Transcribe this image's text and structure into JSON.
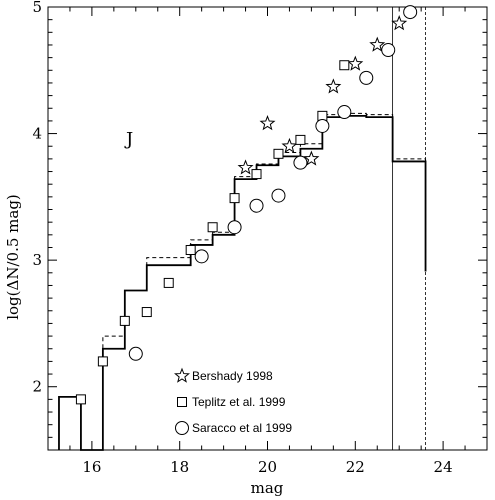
{
  "chart_data": {
    "type": "scatter",
    "panel_label": "J",
    "xlabel": "mag",
    "ylabel": "log(ΔN/0.5 mag)",
    "xlim": [
      15,
      25
    ],
    "ylim": [
      1.5,
      5
    ],
    "x_ticks": [
      16,
      18,
      20,
      22,
      24
    ],
    "y_ticks": [
      2,
      3,
      4,
      5
    ],
    "minor_x_step": 0.5,
    "minor_y_step": 0.1,
    "grid": false,
    "legend_position": "bottom-center",
    "series": [
      {
        "name": "Bershady 1998",
        "marker": "star",
        "points": [
          {
            "x": 19.5,
            "y": 3.73
          },
          {
            "x": 20.0,
            "y": 4.08
          },
          {
            "x": 20.5,
            "y": 3.9
          },
          {
            "x": 21.0,
            "y": 3.8
          },
          {
            "x": 21.5,
            "y": 4.37
          },
          {
            "x": 22.0,
            "y": 4.55
          },
          {
            "x": 22.5,
            "y": 4.7
          },
          {
            "x": 23.0,
            "y": 4.87
          }
        ]
      },
      {
        "name": "Teplitz et al. 1999",
        "marker": "square",
        "points": [
          {
            "x": 15.75,
            "y": 1.9
          },
          {
            "x": 16.25,
            "y": 2.2
          },
          {
            "x": 16.75,
            "y": 2.52
          },
          {
            "x": 17.25,
            "y": 2.59
          },
          {
            "x": 17.75,
            "y": 2.82
          },
          {
            "x": 18.25,
            "y": 3.08
          },
          {
            "x": 18.75,
            "y": 3.26
          },
          {
            "x": 19.25,
            "y": 3.49
          },
          {
            "x": 19.75,
            "y": 3.68
          },
          {
            "x": 20.25,
            "y": 3.84
          },
          {
            "x": 20.75,
            "y": 3.95
          },
          {
            "x": 21.25,
            "y": 4.14
          },
          {
            "x": 21.75,
            "y": 4.54
          }
        ]
      },
      {
        "name": "Saracco et al 1999",
        "marker": "circle",
        "points": [
          {
            "x": 17.0,
            "y": 2.26
          },
          {
            "x": 18.5,
            "y": 3.03
          },
          {
            "x": 19.25,
            "y": 3.26
          },
          {
            "x": 19.75,
            "y": 3.43
          },
          {
            "x": 20.25,
            "y": 3.51
          },
          {
            "x": 20.75,
            "y": 3.77
          },
          {
            "x": 21.25,
            "y": 4.06
          },
          {
            "x": 21.75,
            "y": 4.17
          },
          {
            "x": 22.25,
            "y": 4.44
          },
          {
            "x": 22.75,
            "y": 4.66
          },
          {
            "x": 23.25,
            "y": 4.96
          }
        ]
      }
    ],
    "histograms": [
      {
        "style": "solid",
        "edges": [
          15.25,
          15.75,
          16.25,
          16.75,
          17.25,
          17.75,
          18.25,
          18.75,
          19.25,
          19.75,
          20.25,
          20.75,
          21.25,
          21.75,
          22.25,
          22.85,
          23.6
        ],
        "values": [
          1.92,
          1.5,
          2.3,
          2.76,
          2.96,
          2.96,
          3.12,
          3.2,
          3.64,
          3.75,
          3.82,
          3.88,
          4.13,
          4.14,
          4.13,
          3.78,
          2.91
        ]
      },
      {
        "style": "dashed",
        "edges": [
          15.25,
          15.75,
          16.25,
          16.75,
          17.25,
          17.75,
          18.25,
          18.75,
          19.25,
          19.75,
          20.25,
          20.75,
          21.25,
          21.75,
          22.25,
          22.85,
          23.6
        ],
        "values": [
          1.92,
          1.5,
          2.4,
          2.76,
          3.02,
          3.02,
          3.16,
          3.22,
          3.66,
          3.76,
          3.85,
          3.92,
          4.15,
          4.16,
          4.15,
          3.8,
          2.91
        ]
      }
    ],
    "vertical_lines": [
      {
        "x": 22.85,
        "style": "solid"
      },
      {
        "x": 23.6,
        "style": "dashed"
      }
    ]
  }
}
